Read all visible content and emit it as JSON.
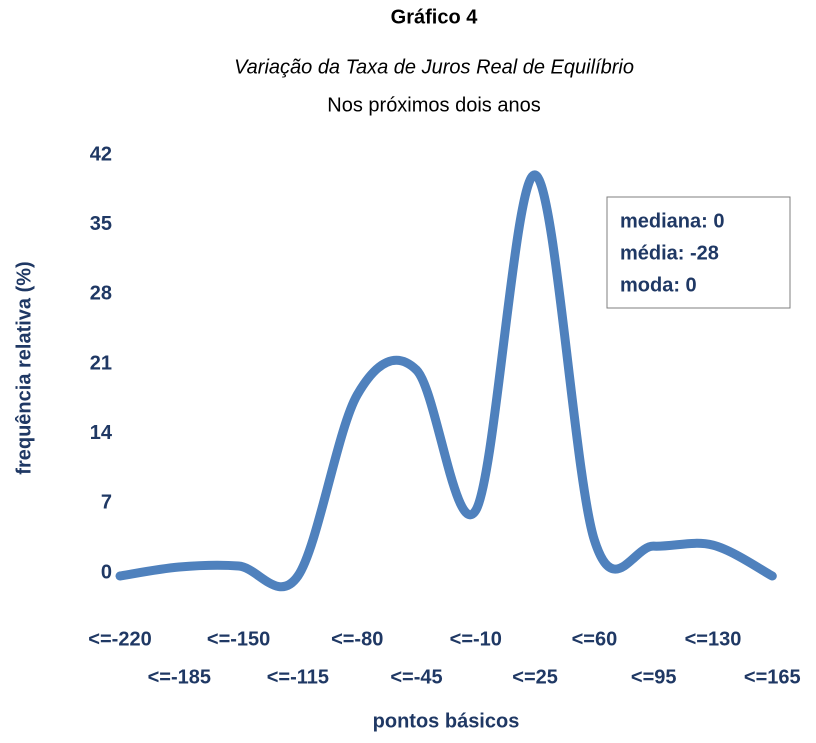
{
  "chart_data": {
    "type": "line",
    "title": "Gráfico 4",
    "subtitle": "Variação da Taxa de Juros Real de Equilíbrio",
    "subtitle2": "Nos próximos dois anos",
    "x_label": "pontos básicos",
    "y_label": "frequência relativa (%)",
    "annotations": [
      "mediana: 0",
      "média: -28",
      "moda: 0"
    ],
    "categories": [
      "<=-220",
      "<=-185",
      "<=-150",
      "<=-115",
      "<=-80",
      "<=-45",
      "<=-10",
      "<=25",
      "<=60",
      "<=95",
      "<=130",
      "<=165"
    ],
    "series": [
      {
        "name": "frequência relativa",
        "color": "#4f81bd",
        "values": [
          0,
          0.9,
          1,
          0,
          18.2,
          20.7,
          6.6,
          40.3,
          3.6,
          3.0,
          3.1,
          0
        ]
      }
    ],
    "ylim": [
      0,
      42
    ],
    "yticks": [
      0,
      7,
      14,
      21,
      28,
      35,
      42
    ],
    "grid": false,
    "smooth": true
  }
}
